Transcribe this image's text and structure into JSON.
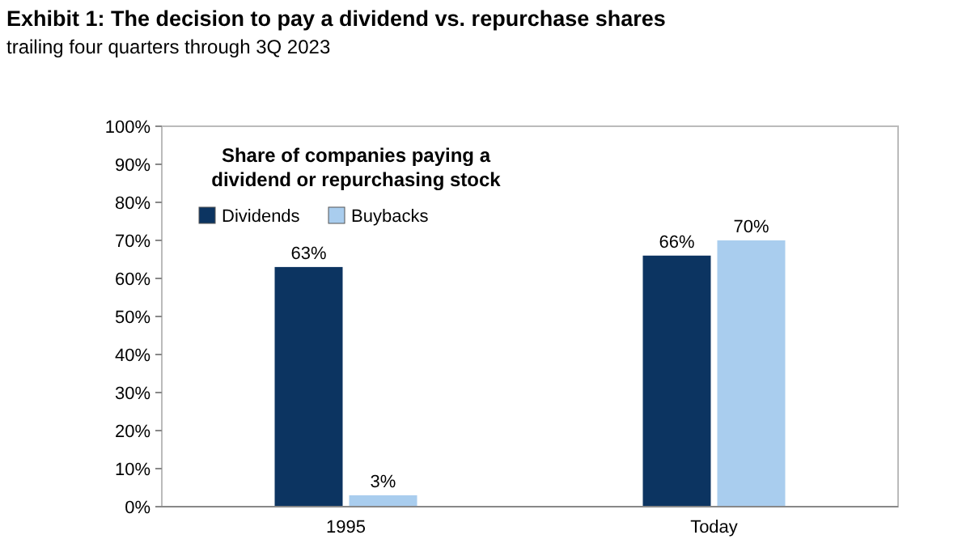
{
  "chart_data": {
    "type": "bar",
    "title": "Exhibit 1: The decision to pay a dividend vs. repurchase shares",
    "subtitle": "trailing four quarters through 3Q 2023",
    "legend_title": "Share of companies paying a dividend or repurchasing stock",
    "categories": [
      "1995",
      "Today"
    ],
    "series": [
      {
        "name": "Dividends",
        "color": "#0c3461",
        "values": [
          63,
          66
        ],
        "value_labels": [
          "63%",
          "66%"
        ]
      },
      {
        "name": "Buybacks",
        "color": "#a9cdee",
        "values": [
          3,
          70
        ],
        "value_labels": [
          "3%",
          "70%"
        ]
      }
    ],
    "ylim": [
      0,
      100
    ],
    "yticks": [
      {
        "value": 0,
        "label": "0%"
      },
      {
        "value": 10,
        "label": "10%"
      },
      {
        "value": 20,
        "label": "20%"
      },
      {
        "value": 30,
        "label": "30%"
      },
      {
        "value": 40,
        "label": "40%"
      },
      {
        "value": 50,
        "label": "50%"
      },
      {
        "value": 60,
        "label": "60%"
      },
      {
        "value": 70,
        "label": "70%"
      },
      {
        "value": 80,
        "label": "80%"
      },
      {
        "value": 90,
        "label": "90%"
      },
      {
        "value": 100,
        "label": "100%"
      }
    ],
    "grid": false,
    "legend": "top left"
  }
}
